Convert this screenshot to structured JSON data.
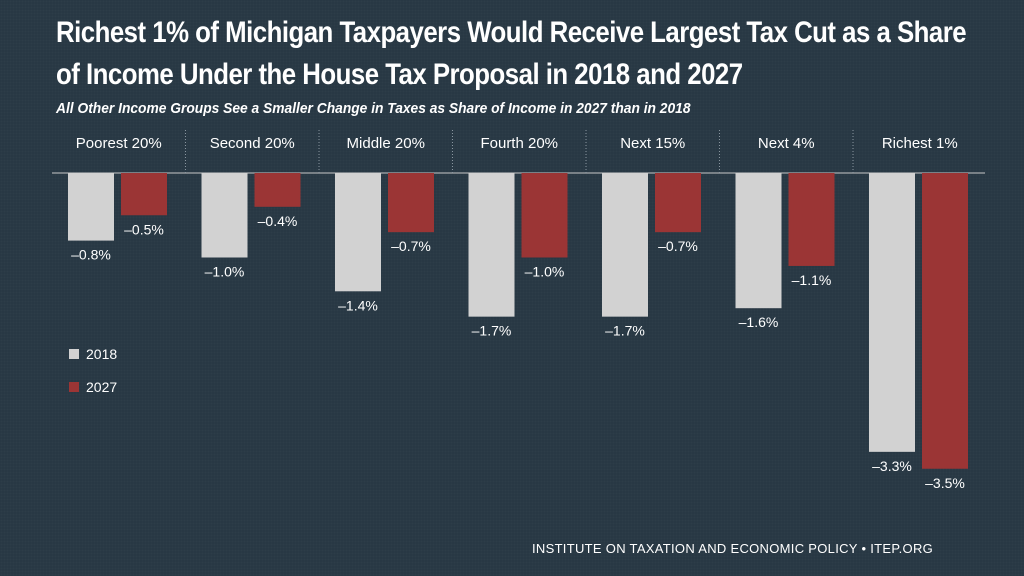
{
  "chart_data": {
    "type": "bar",
    "title": "Richest 1% of Michigan Taxpayers Would Receive Largest Tax Cut as a Share of Income Under the House Tax Proposal in 2018 and 2027",
    "subtitle": "All  Other Income Groups See a Smaller Change in Taxes as Share of Income in 2027 than in 2018",
    "categories": [
      "Poorest 20%",
      "Second 20%",
      "Middle 20%",
      "Fourth 20%",
      "Next 15%",
      "Next 4%",
      "Richest 1%"
    ],
    "series": [
      {
        "name": "2018",
        "color": "#d2d2d2",
        "values": [
          -0.8,
          -1.0,
          -1.4,
          -1.7,
          -1.7,
          -1.6,
          -3.3
        ],
        "labels": [
          "–0.8%",
          "–1.0%",
          "–1.4%",
          "–1.7%",
          "–1.7%",
          "–1.6%",
          "–3.3%"
        ]
      },
      {
        "name": "2027",
        "color": "#9b3535",
        "values": [
          -0.5,
          -0.4,
          -0.7,
          -1.0,
          -0.7,
          -1.1,
          -3.5
        ],
        "labels": [
          "–0.5%",
          "–0.4%",
          "–0.7%",
          "–1.0%",
          "–0.7%",
          "–1.1%",
          "–3.5%"
        ]
      }
    ],
    "ylim": [
      -3.5,
      0
    ],
    "xlabel": "",
    "ylabel": "",
    "legend_position": "left"
  },
  "footer": "INSTITUTE ON TAXATION AND ECONOMIC POLICY • ITEP.ORG",
  "colors": {
    "background": "#283844",
    "divider": "#8a96a0",
    "axis": "#c8c8c8"
  }
}
